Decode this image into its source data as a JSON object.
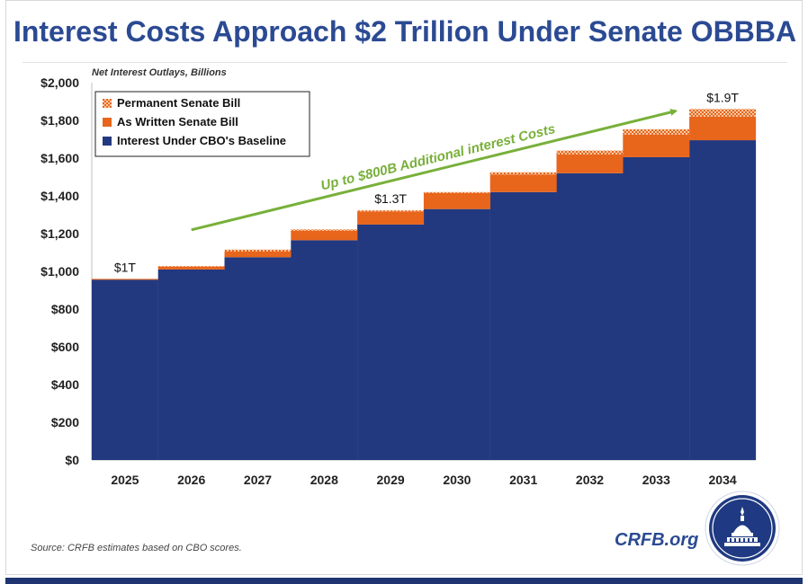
{
  "title": "Interest Costs Approach $2 Trillion Under Senate OBBBA",
  "source_note": "Source: CRFB estimates based on CBO scores.",
  "brand": "CRFB.org",
  "colors": {
    "title": "#2b4a93",
    "baseline": "#22397f",
    "as_written": "#e8651c",
    "permanent": "#f3a96c",
    "arrow": "#78b03a"
  },
  "logo": {
    "icon": "capitol-dome-seal-icon"
  },
  "chart_data": {
    "type": "bar",
    "stacked": true,
    "subtitle": "Net Interest Outlays, Billions",
    "categories": [
      "2025",
      "2026",
      "2027",
      "2028",
      "2029",
      "2030",
      "2031",
      "2032",
      "2033",
      "2034"
    ],
    "series": [
      {
        "name": "Interest Under CBO's Baseline",
        "values": [
          955,
          1010,
          1075,
          1165,
          1248,
          1330,
          1420,
          1520,
          1605,
          1695
        ],
        "color": "#22397f"
      },
      {
        "name": "As Written Senate Bill",
        "values": [
          5,
          15,
          30,
          50,
          70,
          85,
          93,
          100,
          120,
          125
        ],
        "color": "#e8651c"
      },
      {
        "name": "Permanent Senate Bill",
        "values": [
          0,
          3,
          10,
          7,
          5,
          5,
          12,
          20,
          28,
          40
        ],
        "color": "#f3a96c",
        "pattern": "checker"
      }
    ],
    "ylim": [
      0,
      2000
    ],
    "yticks": [
      0,
      200,
      400,
      600,
      800,
      1000,
      1200,
      1400,
      1600,
      1800,
      2000
    ],
    "ytick_labels": [
      "$0",
      "$200",
      "$400",
      "$600",
      "$800",
      "$1,000",
      "$1,200",
      "$1,400",
      "$1,600",
      "$1,800",
      "$2,000"
    ],
    "legend_position": "top-left",
    "legend_order": [
      "Permanent Senate Bill",
      "As Written Senate Bill",
      "Interest Under CBO's Baseline"
    ],
    "bar_labels": [
      {
        "category": "2025",
        "text": "$1T"
      },
      {
        "category": "2029",
        "text": "$1.3T"
      },
      {
        "category": "2034",
        "text": "$1.9T"
      }
    ],
    "annotation": {
      "text": "Up to $800B Additional interest Costs",
      "from_category": "2026",
      "to_category": "2034"
    },
    "grid": false
  }
}
